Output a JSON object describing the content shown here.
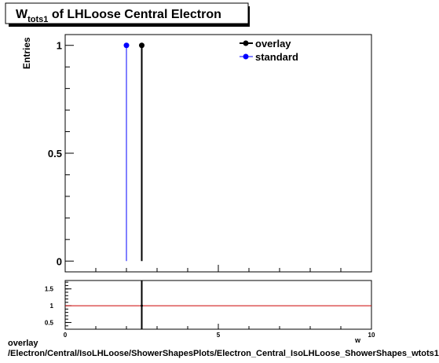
{
  "title": {
    "main": "W",
    "sub": "tots1",
    "rest": " of LHLoose Central  Electron"
  },
  "chart_data": [
    {
      "type": "histogram",
      "ylabel": "Entries",
      "xlim": [
        0,
        10
      ],
      "ylim": [
        -0.05,
        1.05
      ],
      "y_ticks": [
        0,
        0.5,
        1
      ],
      "y_tick_labels": [
        "0",
        "0.5",
        "1"
      ],
      "series": [
        {
          "name": "overlay",
          "color": "#000000",
          "x": 2.5,
          "y": 1
        },
        {
          "name": "standard",
          "color": "#0000ff",
          "x": 2.0,
          "y": 1
        }
      ],
      "legend": {
        "position": "top-right"
      }
    },
    {
      "type": "ratio",
      "xlabel": "w",
      "xlim": [
        0,
        10
      ],
      "ylim": [
        0.3,
        1.75
      ],
      "x_ticks": [
        0,
        5,
        10
      ],
      "x_tick_labels": [
        "0",
        "5",
        "10"
      ],
      "y_ticks": [
        0.5,
        1,
        1.5
      ],
      "y_tick_labels": [
        "0.5",
        "1",
        "1.5"
      ],
      "reference_line": {
        "y": 1,
        "color": "#cc0000"
      },
      "marker": {
        "x": 2.5,
        "y": 1
      }
    }
  ],
  "footer": {
    "line1": "overlay",
    "line2": "/Electron/Central/IsoLHLoose/ShowerShapesPlots/Electron_Central_IsoLHLoose_ShowerShapes_wtots1"
  }
}
